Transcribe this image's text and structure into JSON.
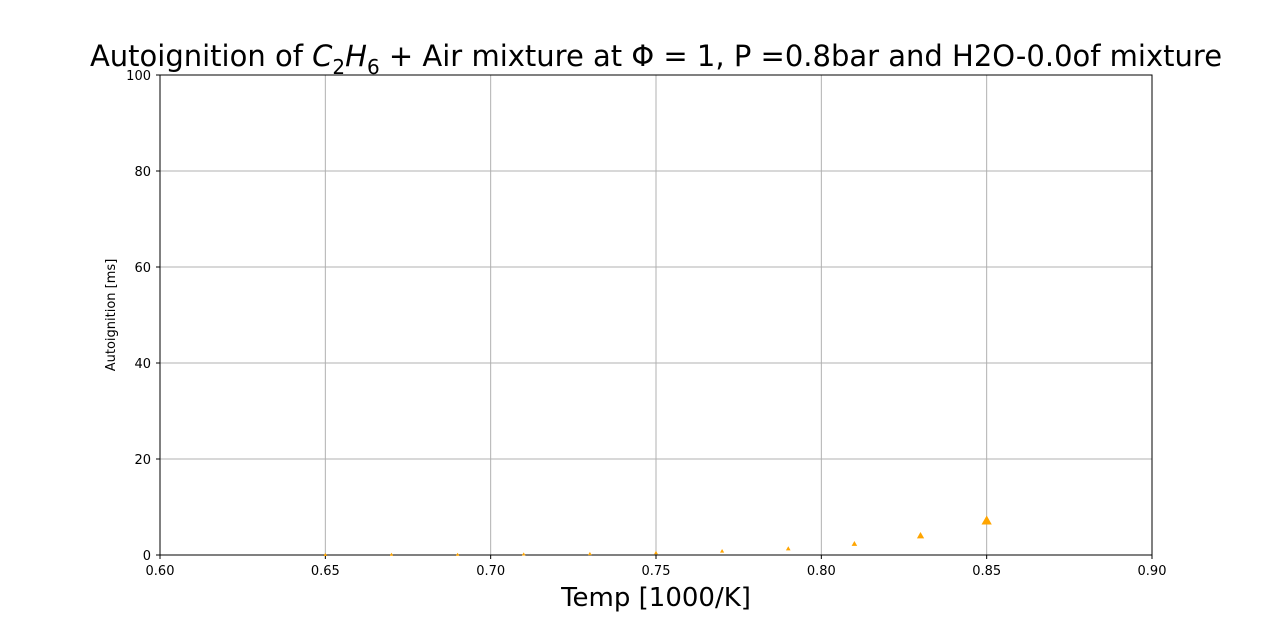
{
  "chart_data": {
    "type": "scatter",
    "title": {
      "prefix": "Autoignition of ",
      "species_c": "C",
      "species_c_sub": "2",
      "species_h": "H",
      "species_h_sub": "6",
      "suffix": " + Air mixture at Φ = 1, P =0.8bar and H2O-0.0of mixture"
    },
    "xlabel": "Temp [1000/K]",
    "ylabel": "Autoignition [ms]",
    "xlim": [
      0.6,
      0.9
    ],
    "ylim": [
      0,
      100
    ],
    "xticks": [
      "0.60",
      "0.65",
      "0.70",
      "0.75",
      "0.80",
      "0.85",
      "0.90"
    ],
    "yticks": [
      "0",
      "20",
      "40",
      "60",
      "80",
      "100"
    ],
    "grid": true,
    "marker": "triangle-up",
    "color": "#FFA500",
    "series": [
      {
        "x": [
          0.65,
          0.67,
          0.69,
          0.71,
          0.73,
          0.75,
          0.77,
          0.79,
          0.81,
          0.83,
          0.85
        ],
        "y": [
          0.05,
          0.08,
          0.1,
          0.15,
          0.25,
          0.45,
          0.8,
          1.3,
          2.3,
          4.0,
          7.1
        ]
      }
    ]
  }
}
